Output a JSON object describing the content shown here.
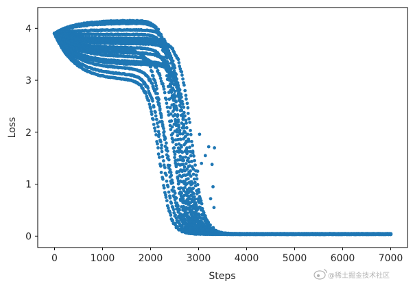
{
  "chart_data": {
    "type": "scatter",
    "title": "",
    "xlabel": "Steps",
    "ylabel": "Loss",
    "xlim": [
      -350,
      7350
    ],
    "ylim": [
      -0.22,
      4.4
    ],
    "x_ticks": [
      0,
      1000,
      2000,
      3000,
      4000,
      5000,
      6000,
      7000
    ],
    "y_ticks": [
      0,
      1,
      2,
      3,
      4
    ],
    "grid": false,
    "legend": "none",
    "marker_color": "#1f77b4",
    "series": [
      {
        "plateau": 4.15,
        "drop_center": 2450,
        "drop_width": 105,
        "end": 7000
      },
      {
        "plateau": 4.1,
        "drop_center": 2500,
        "drop_width": 105,
        "end": 7000
      },
      {
        "plateau": 3.97,
        "drop_center": 2600,
        "drop_width": 110,
        "end": 7000
      },
      {
        "plateau": 3.88,
        "drop_center": 2550,
        "drop_width": 105,
        "end": 7000
      },
      {
        "plateau": 3.8,
        "drop_center": 2680,
        "drop_width": 115,
        "end": 7000
      },
      {
        "plateau": 3.7,
        "drop_center": 2720,
        "drop_width": 115,
        "end": 7000
      },
      {
        "plateau": 3.62,
        "drop_center": 2580,
        "drop_width": 120,
        "end": 7000
      },
      {
        "plateau": 3.52,
        "drop_center": 2640,
        "drop_width": 120,
        "end": 7000
      },
      {
        "plateau": 3.45,
        "drop_center": 2470,
        "drop_width": 130,
        "end": 7000
      },
      {
        "plateau": 3.35,
        "drop_center": 2760,
        "drop_width": 120,
        "end": 7000
      },
      {
        "plateau": 3.22,
        "drop_center": 2350,
        "drop_width": 140,
        "end": 7000
      },
      {
        "plateau": 3.1,
        "drop_center": 2250,
        "drop_width": 130,
        "end": 7000
      },
      {
        "plateau": 3.0,
        "drop_center": 2180,
        "drop_width": 120,
        "end": 7000
      },
      {
        "plateau": 3.3,
        "drop_center": 2820,
        "drop_width": 125,
        "end": 7000
      },
      {
        "plateau": 3.75,
        "drop_center": 2850,
        "drop_width": 125,
        "end": 7000
      },
      {
        "plateau": 3.58,
        "drop_center": 2300,
        "drop_width": 135,
        "end": 7000
      }
    ],
    "outliers": [
      {
        "x": 3020,
        "y": 1.96
      },
      {
        "x": 3210,
        "y": 1.72
      },
      {
        "x": 3140,
        "y": 1.55
      },
      {
        "x": 3060,
        "y": 1.4
      },
      {
        "x": 3330,
        "y": 1.7
      },
      {
        "x": 3280,
        "y": 1.38
      },
      {
        "x": 3300,
        "y": 0.95
      },
      {
        "x": 3250,
        "y": 0.72
      },
      {
        "x": 2190,
        "y": 2.2
      },
      {
        "x": 2170,
        "y": 1.92
      },
      {
        "x": 2230,
        "y": 1.75
      },
      {
        "x": 2760,
        "y": 1.82
      },
      {
        "x": 2880,
        "y": 1.6
      },
      {
        "x": 3320,
        "y": 0.55
      },
      {
        "x": 2980,
        "y": 1.25
      }
    ]
  },
  "watermark": {
    "text": "@稀土掘金技术社区",
    "icon": "weibo-icon"
  }
}
